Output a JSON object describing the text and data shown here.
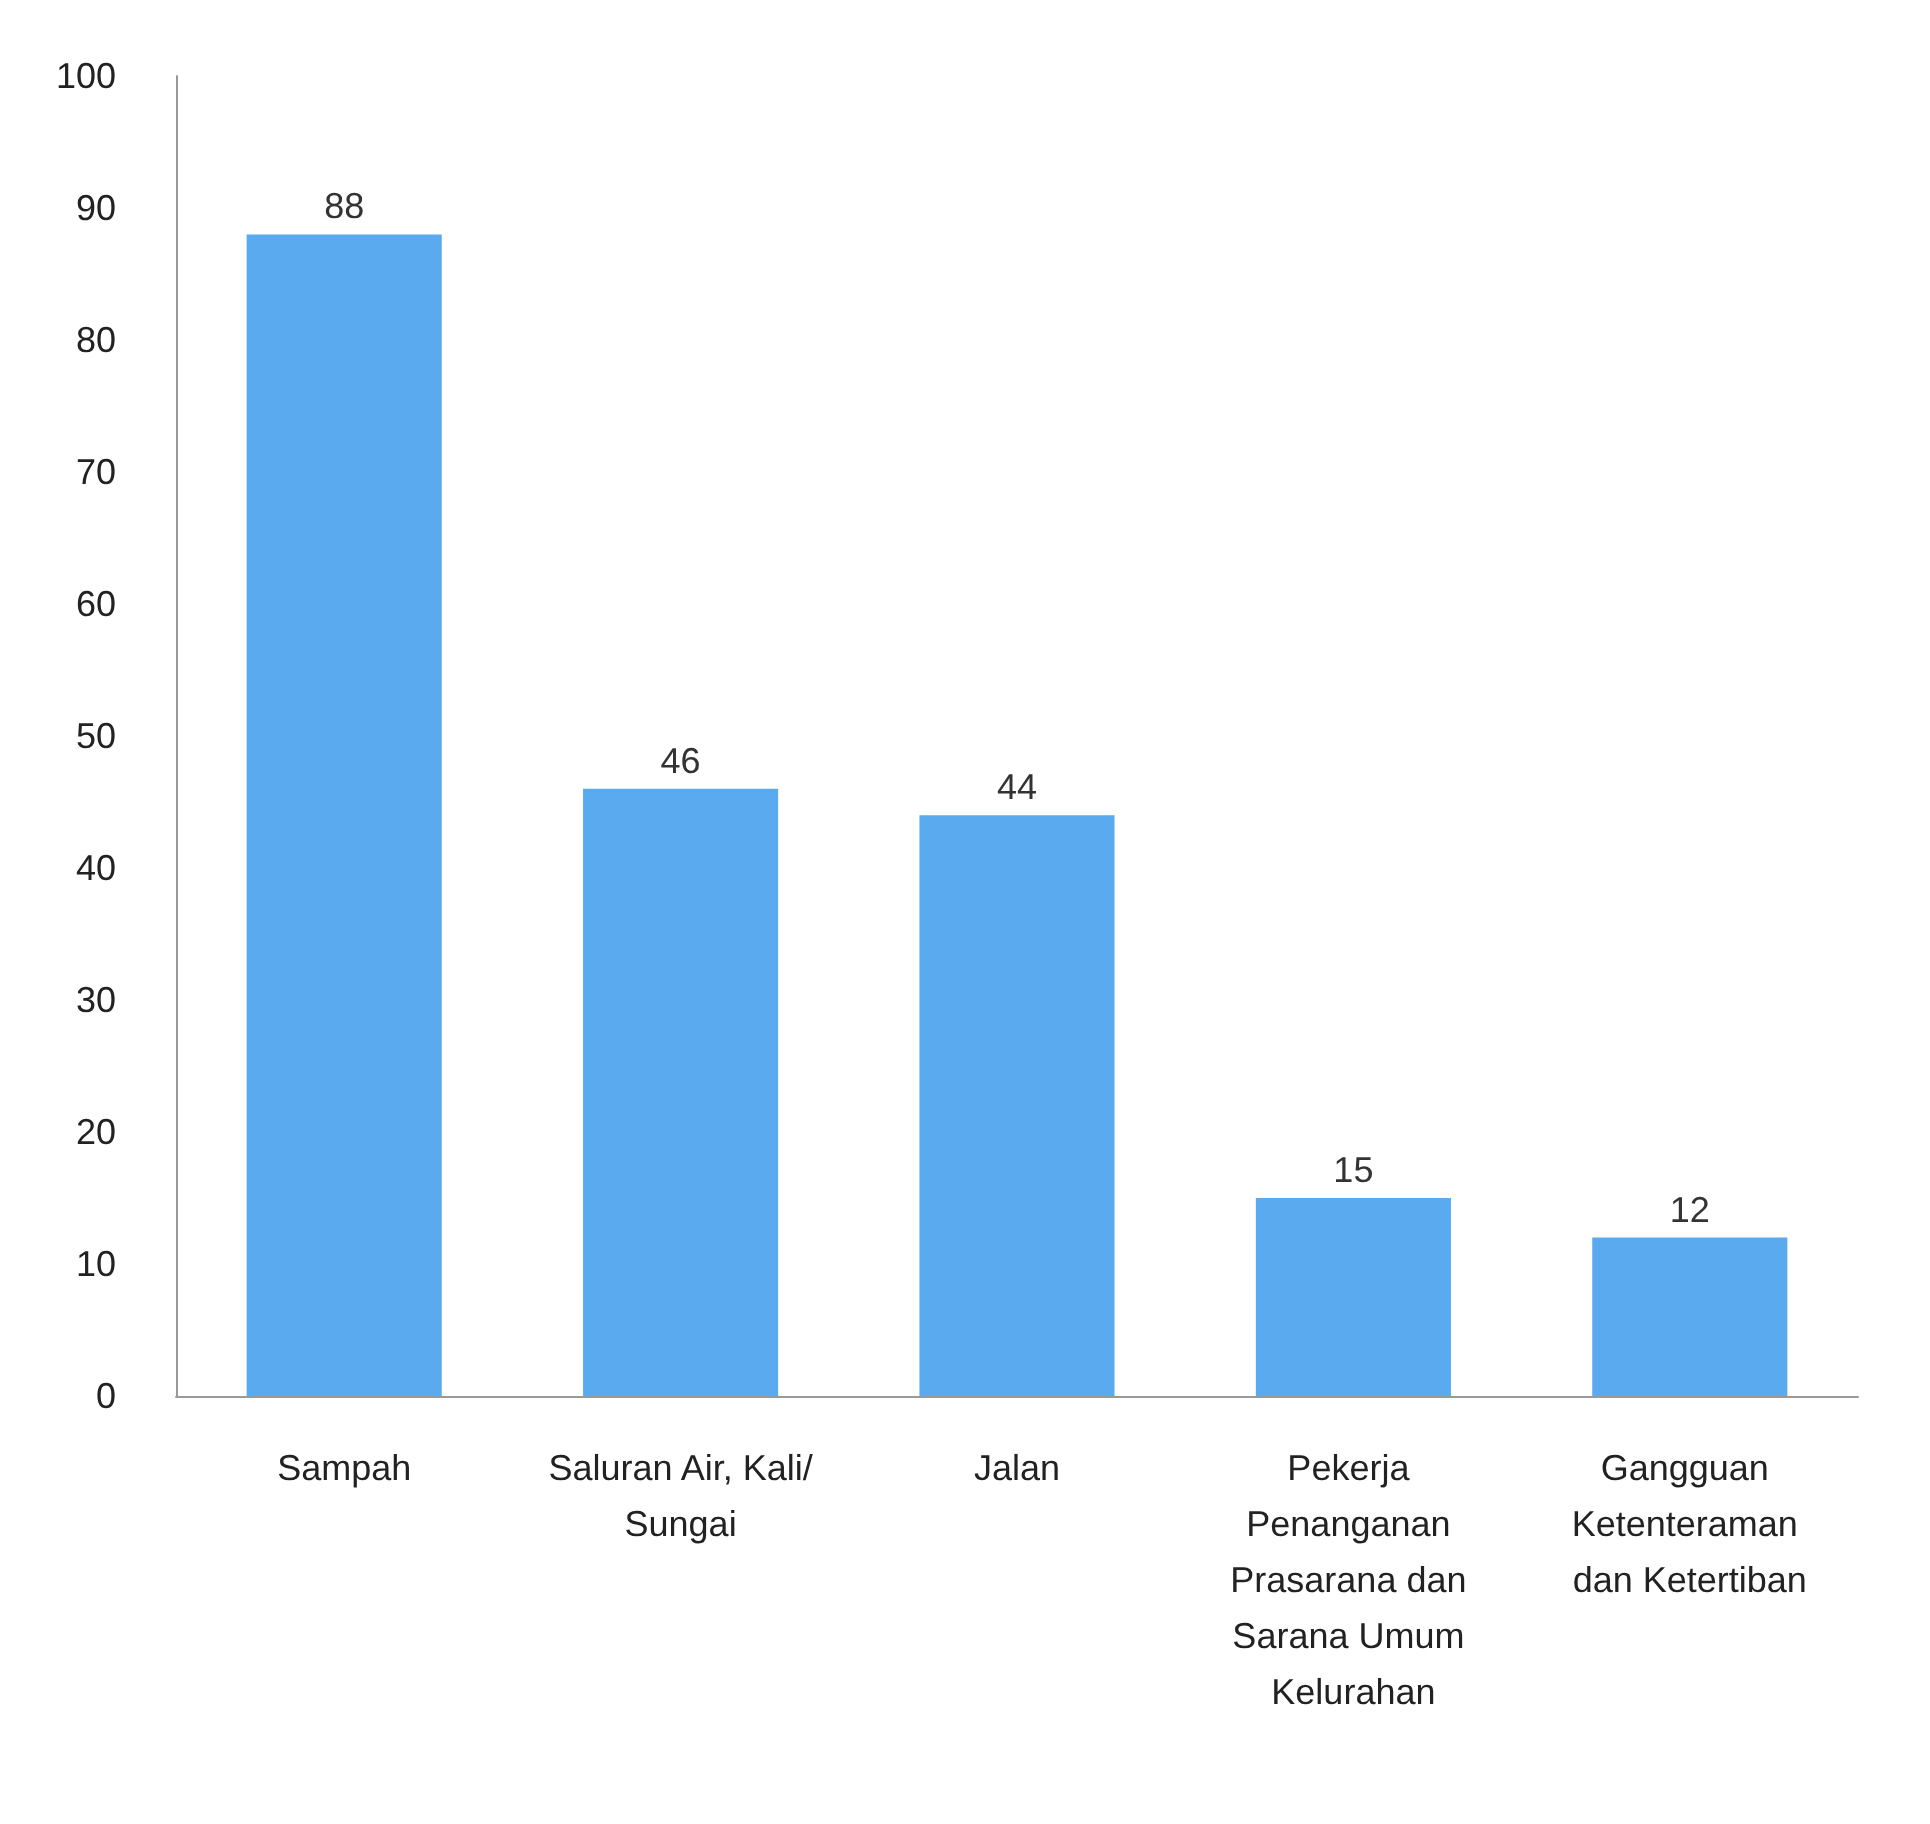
{
  "chart_data": {
    "type": "bar",
    "categories": [
      "Sampah",
      "Saluran Air, Kali/Sungai",
      "Jalan",
      "Pekerja Penanganan Prasarana dan Sarana Umum Kelurahan",
      "Gangguan Ketenteraman dan Ketertiban"
    ],
    "values": [
      88,
      46,
      44,
      15,
      12
    ],
    "color": "#5aaaf0",
    "data_labels": true,
    "ylim": [
      0,
      100
    ],
    "yticks": [
      0,
      10,
      20,
      30,
      40,
      50,
      60,
      70,
      80,
      90,
      100
    ],
    "tick_labels": "xy"
  }
}
